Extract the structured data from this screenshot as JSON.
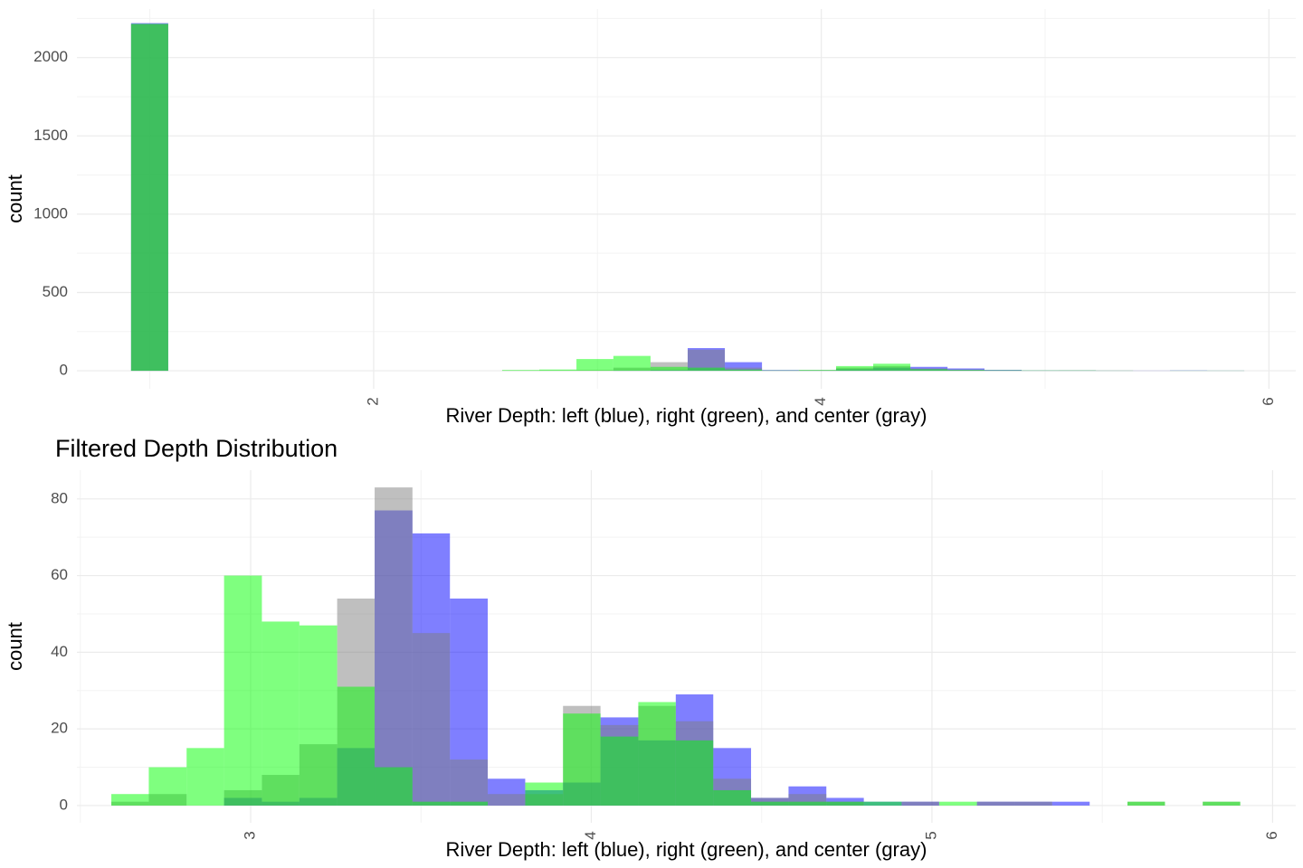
{
  "chart_data": [
    {
      "type": "histogram",
      "x_label": "River Depth: left (blue), right (green), and center (gray)",
      "y_label": "count",
      "bins": [
        0.916,
        1.082,
        1.248,
        1.413,
        1.579,
        1.745,
        1.911,
        2.077,
        2.242,
        2.408,
        2.574,
        2.74,
        2.906,
        3.071,
        3.237,
        3.403,
        3.569,
        3.735,
        3.9,
        4.066,
        4.232,
        4.398,
        4.564,
        4.729,
        4.895,
        5.061,
        5.227,
        5.393,
        5.558,
        5.724,
        5.89
      ],
      "series": [
        {
          "color": "#0000ff",
          "values": [
            2220,
            0,
            0,
            0,
            0,
            0,
            0,
            0,
            0,
            0,
            0,
            0,
            0,
            2,
            5,
            145,
            55,
            5,
            3,
            10,
            20,
            25,
            15,
            6,
            2,
            2,
            1,
            1,
            2,
            1
          ]
        },
        {
          "color": "#808080",
          "values": [
            2215,
            0,
            0,
            0,
            0,
            0,
            0,
            0,
            0,
            0,
            2,
            3,
            5,
            20,
            55,
            135,
            20,
            3,
            5,
            20,
            30,
            15,
            8,
            4,
            2,
            3,
            2,
            1,
            1,
            1
          ]
        },
        {
          "color": "#00ff00",
          "values": [
            2215,
            0,
            0,
            0,
            0,
            0,
            0,
            0,
            0,
            0,
            5,
            8,
            75,
            95,
            25,
            20,
            8,
            2,
            5,
            30,
            45,
            10,
            5,
            3,
            2,
            2,
            1,
            0,
            1,
            1
          ]
        }
      ],
      "opacity": 0.5,
      "xlim": [
        0.674,
        6.12
      ],
      "xticks": [
        2,
        4,
        6
      ],
      "ylim": [
        -115,
        2310
      ],
      "yticks": [
        0,
        500,
        1000,
        1500,
        2000
      ],
      "grid": true
    },
    {
      "type": "histogram",
      "title": "Filtered Depth Distribution",
      "x_label": "River Depth: left (blue), right (green), and center (gray)",
      "y_label": "count",
      "bins": [
        2.591,
        2.701,
        2.812,
        2.922,
        3.033,
        3.143,
        3.254,
        3.364,
        3.475,
        3.585,
        3.696,
        3.806,
        3.917,
        4.027,
        4.138,
        4.248,
        4.358,
        4.469,
        4.579,
        4.69,
        4.8,
        4.911,
        5.021,
        5.132,
        5.242,
        5.353,
        5.463,
        5.574,
        5.684,
        5.795,
        5.905
      ],
      "series": [
        {
          "color": "#0000ff",
          "values": [
            0,
            0,
            0,
            2,
            1,
            2,
            15,
            77,
            71,
            54,
            7,
            4,
            6,
            23,
            17,
            29,
            15,
            2,
            5,
            2,
            1,
            1,
            0,
            1,
            1,
            1,
            0,
            0,
            0,
            0
          ]
        },
        {
          "color": "#808080",
          "values": [
            1,
            3,
            0,
            4,
            8,
            16,
            54,
            83,
            45,
            12,
            3,
            3,
            26,
            21,
            26,
            22,
            7,
            2,
            3,
            1,
            0,
            1,
            0,
            1,
            1,
            0,
            0,
            1,
            0,
            1
          ]
        },
        {
          "color": "#00ff00",
          "values": [
            3,
            10,
            15,
            60,
            48,
            47,
            31,
            10,
            1,
            1,
            0,
            6,
            24,
            18,
            27,
            17,
            4,
            1,
            1,
            1,
            1,
            0,
            1,
            0,
            0,
            0,
            0,
            1,
            0,
            1
          ]
        }
      ],
      "opacity": 0.5,
      "xlim": [
        2.49,
        6.068
      ],
      "xticks": [
        3,
        4,
        5,
        6
      ],
      "ylim": [
        -4.5,
        87.5
      ],
      "yticks": [
        0,
        20,
        40,
        60,
        80
      ],
      "grid": true
    }
  ]
}
